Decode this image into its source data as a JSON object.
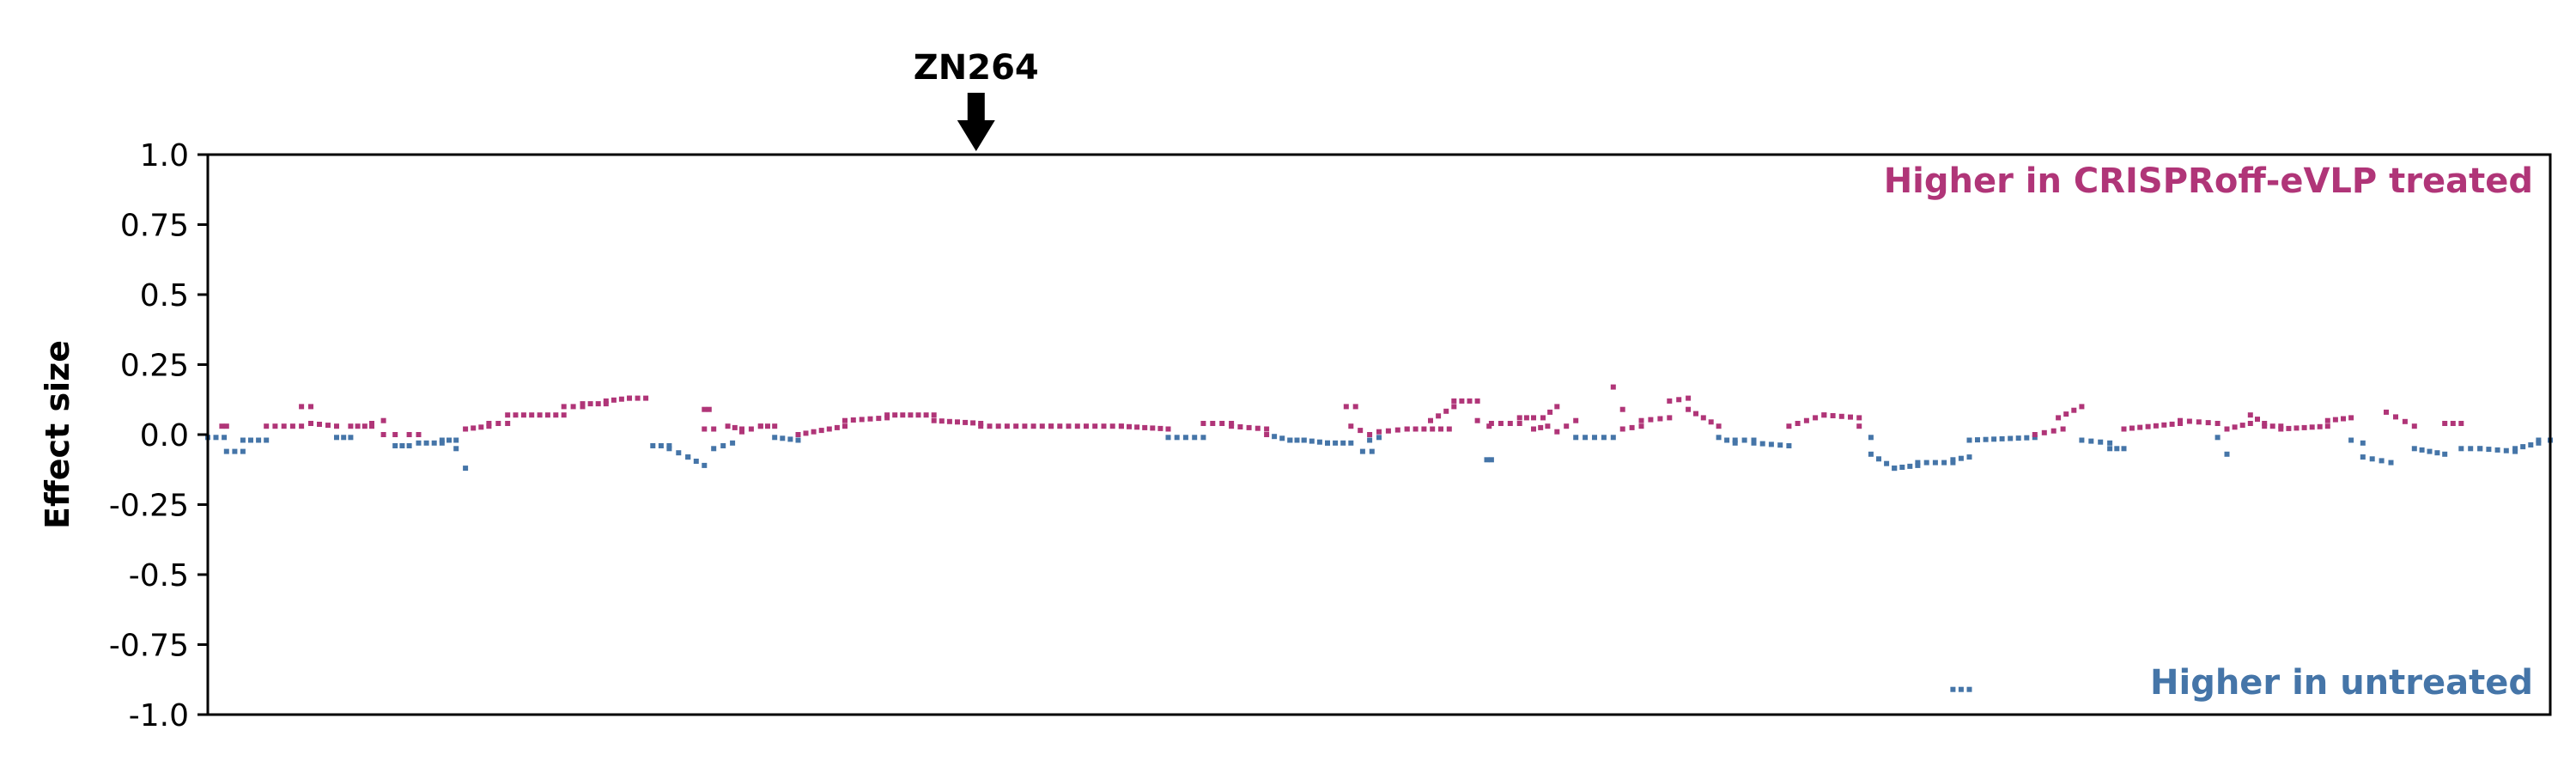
{
  "chart_data": {
    "type": "scatter",
    "ylabel": "Effect size",
    "ylim": [
      -1.0,
      1.0
    ],
    "yticks": [
      1.0,
      0.75,
      0.5,
      0.25,
      0.0,
      -0.25,
      -0.5,
      -0.75,
      -1.0
    ],
    "ytick_labels": [
      "1.0",
      "0.75",
      "0.5",
      "0.25",
      "0.0",
      "-0.25",
      "-0.5",
      "-0.75",
      "-1.0"
    ],
    "xlim": [
      0,
      1000
    ],
    "grid": false,
    "gene_marker": {
      "label": "ZN264",
      "x": 328
    },
    "annotations": {
      "top": {
        "text": "Higher in CRISPRoff-eVLP treated",
        "color": "#b03578"
      },
      "bottom": {
        "text": "Higher in untreated",
        "color": "#4575a8"
      }
    },
    "colors": {
      "up": "#b03578",
      "down": "#4575a8"
    },
    "series": [
      {
        "segments": [
          [
            0,
            7,
            -0.01,
            -0.01
          ],
          [
            6,
            8,
            0.03,
            0.03
          ],
          [
            8,
            15,
            -0.06,
            -0.06
          ],
          [
            15,
            25,
            -0.02,
            -0.02
          ],
          [
            25,
            40,
            0.03,
            0.03
          ],
          [
            40,
            44,
            0.1,
            0.1
          ],
          [
            44,
            55,
            0.04,
            0.03
          ],
          [
            55,
            61,
            -0.01,
            -0.01
          ],
          [
            61,
            70,
            0.03,
            0.03
          ],
          [
            70,
            75,
            0.04,
            0.05
          ],
          [
            75,
            80,
            0.0,
            0.0
          ],
          [
            80,
            86,
            -0.04,
            -0.04
          ],
          [
            86,
            90,
            0.0,
            0.0
          ],
          [
            90,
            100,
            -0.03,
            -0.03
          ],
          [
            100,
            106,
            -0.02,
            -0.02
          ],
          [
            106,
            110,
            -0.05,
            -0.12
          ],
          [
            110,
            120,
            0.02,
            0.03
          ],
          [
            120,
            128,
            0.04,
            0.04
          ],
          [
            128,
            152,
            0.07,
            0.07
          ],
          [
            152,
            160,
            0.1,
            0.1
          ],
          [
            160,
            170,
            0.11,
            0.11
          ],
          [
            170,
            180,
            0.12,
            0.13
          ],
          [
            180,
            187,
            0.13,
            0.13
          ],
          [
            190,
            197,
            -0.04,
            -0.04
          ],
          [
            197,
            205,
            -0.05,
            -0.08
          ],
          [
            205,
            212,
            -0.08,
            -0.11
          ],
          [
            212,
            216,
            0.02,
            0.02
          ],
          [
            212,
            214,
            0.09,
            0.09
          ],
          [
            216,
            224,
            -0.05,
            -0.03
          ],
          [
            222,
            228,
            0.03,
            0.02
          ],
          [
            228,
            236,
            0.01,
            0.03
          ],
          [
            236,
            242,
            0.03,
            0.03
          ],
          [
            242,
            252,
            -0.01,
            -0.02
          ],
          [
            252,
            272,
            0.0,
            0.03
          ],
          [
            272,
            290,
            0.05,
            0.06
          ],
          [
            290,
            310,
            0.07,
            0.07
          ],
          [
            310,
            330,
            0.05,
            0.04
          ],
          [
            330,
            360,
            0.03,
            0.03
          ],
          [
            360,
            390,
            0.03,
            0.03
          ],
          [
            390,
            410,
            0.03,
            0.02
          ],
          [
            410,
            425,
            -0.01,
            -0.01
          ],
          [
            425,
            437,
            0.04,
            0.04
          ],
          [
            437,
            452,
            0.03,
            0.02
          ],
          [
            452,
            462,
            0.0,
            -0.02
          ],
          [
            462,
            468,
            -0.02,
            -0.02
          ],
          [
            468,
            478,
            -0.02,
            -0.03
          ],
          [
            478,
            488,
            -0.03,
            -0.03
          ],
          [
            486,
            490,
            0.1,
            0.1
          ],
          [
            488,
            496,
            0.03,
            0.0
          ],
          [
            493,
            497,
            -0.06,
            -0.06
          ],
          [
            496,
            500,
            -0.02,
            -0.01
          ],
          [
            500,
            512,
            0.01,
            0.02
          ],
          [
            512,
            530,
            0.02,
            0.02
          ],
          [
            522,
            532,
            0.05,
            0.1
          ],
          [
            532,
            542,
            0.12,
            0.12
          ],
          [
            542,
            547,
            0.05,
            0.03
          ],
          [
            546,
            548,
            -0.09,
            -0.09
          ],
          [
            548,
            560,
            0.04,
            0.04
          ],
          [
            560,
            566,
            0.06,
            0.06
          ],
          [
            566,
            572,
            0.02,
            0.03
          ],
          [
            570,
            576,
            0.06,
            0.1
          ],
          [
            576,
            584,
            0.01,
            0.05
          ],
          [
            584,
            600,
            -0.01,
            -0.01
          ],
          [
            600,
            604,
            0.17,
            0.09
          ],
          [
            604,
            612,
            0.02,
            0.03
          ],
          [
            612,
            624,
            0.05,
            0.06
          ],
          [
            624,
            632,
            0.12,
            0.13
          ],
          [
            632,
            645,
            0.09,
            0.03
          ],
          [
            645,
            652,
            -0.01,
            -0.03
          ],
          [
            652,
            660,
            -0.02,
            -0.02
          ],
          [
            660,
            675,
            -0.03,
            -0.04
          ],
          [
            675,
            690,
            0.03,
            0.07
          ],
          [
            690,
            705,
            0.07,
            0.06
          ],
          [
            705,
            710,
            0.03,
            -0.01
          ],
          [
            710,
            720,
            -0.07,
            -0.12
          ],
          [
            720,
            730,
            -0.12,
            -0.11
          ],
          [
            730,
            745,
            -0.1,
            -0.1
          ],
          [
            745,
            752,
            -0.09,
            -0.08
          ],
          [
            745,
            752,
            -0.91,
            -0.91
          ],
          [
            752,
            780,
            -0.02,
            -0.01
          ],
          [
            780,
            792,
            0.0,
            0.02
          ],
          [
            790,
            800,
            0.06,
            0.1
          ],
          [
            800,
            812,
            -0.02,
            -0.03
          ],
          [
            812,
            818,
            -0.05,
            -0.05
          ],
          [
            818,
            842,
            0.02,
            0.04
          ],
          [
            842,
            858,
            0.05,
            0.04
          ],
          [
            858,
            862,
            -0.01,
            -0.07
          ],
          [
            862,
            872,
            0.02,
            0.04
          ],
          [
            872,
            878,
            0.07,
            0.04
          ],
          [
            878,
            885,
            0.03,
            0.03
          ],
          [
            885,
            905,
            0.02,
            0.03
          ],
          [
            905,
            915,
            0.05,
            0.06
          ],
          [
            915,
            920,
            -0.02,
            -0.03
          ],
          [
            920,
            932,
            -0.08,
            -0.1
          ],
          [
            930,
            942,
            0.08,
            0.03
          ],
          [
            942,
            955,
            -0.05,
            -0.07
          ],
          [
            955,
            962,
            0.04,
            0.04
          ],
          [
            962,
            970,
            -0.05,
            -0.05
          ],
          [
            970,
            985,
            -0.05,
            -0.06
          ],
          [
            985,
            995,
            -0.05,
            -0.03
          ],
          [
            995,
            1000,
            -0.02,
            -0.02
          ]
        ]
      }
    ]
  }
}
